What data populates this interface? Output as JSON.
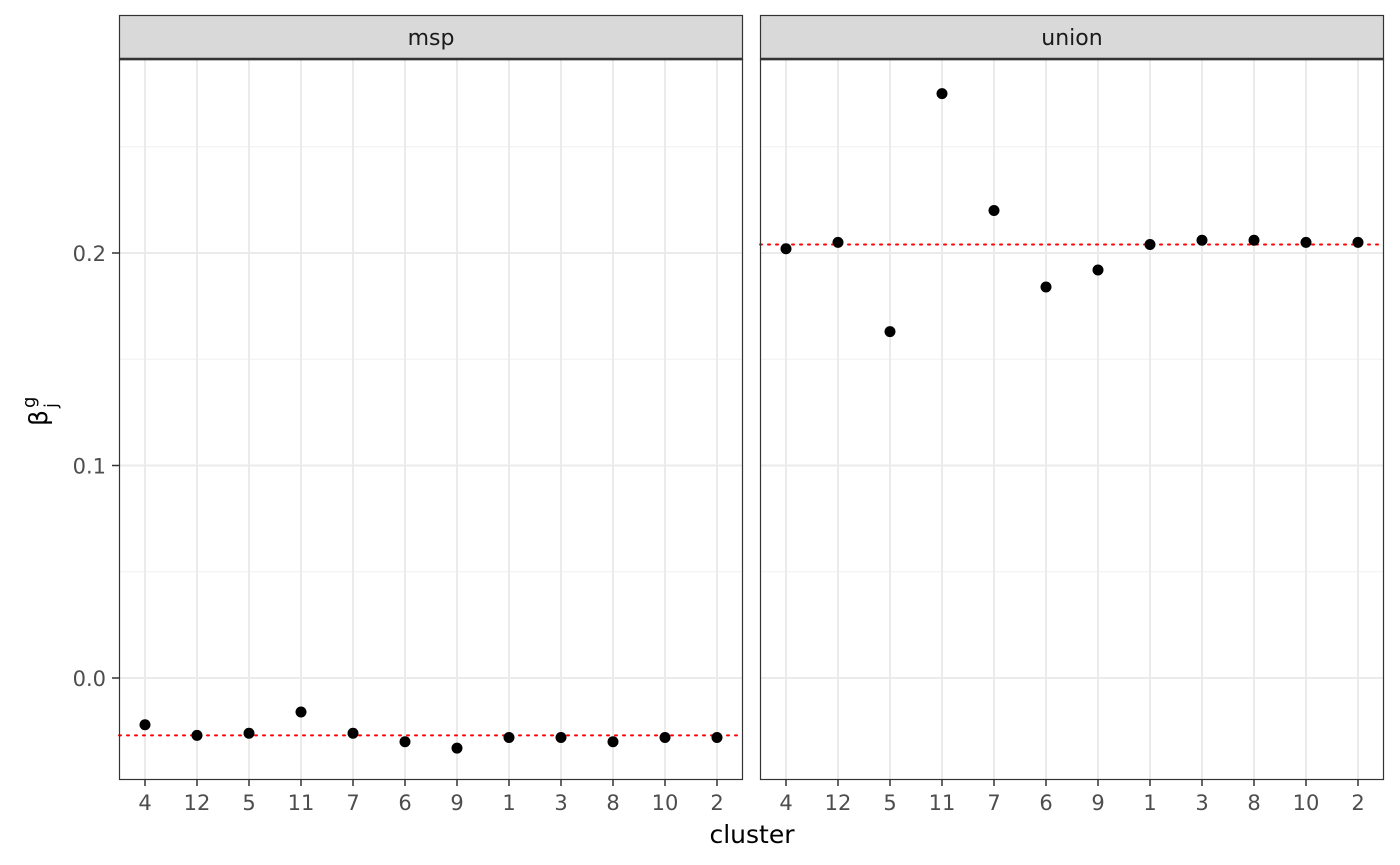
{
  "chart_data": {
    "type": "scatter",
    "xlabel": "cluster",
    "ylabel_base": "β",
    "ylabel_sup": "g",
    "ylabel_sub": "j",
    "categories": [
      "4",
      "12",
      "5",
      "11",
      "7",
      "6",
      "9",
      "1",
      "3",
      "8",
      "10",
      "2"
    ],
    "ylim": [
      -0.048,
      0.29
    ],
    "yticks": [
      0.0,
      0.1,
      0.2
    ],
    "ytick_labels": [
      "0.0",
      "0.1",
      "0.2"
    ],
    "grid": true,
    "point_color": "#000000",
    "refline_color": "#ff0000",
    "panels": [
      {
        "strip": "msp",
        "values": [
          -0.022,
          -0.027,
          -0.026,
          -0.016,
          -0.026,
          -0.03,
          -0.033,
          -0.028,
          -0.028,
          -0.03,
          -0.028,
          -0.028
        ],
        "refline": -0.027
      },
      {
        "strip": "union",
        "values": [
          0.202,
          0.205,
          0.163,
          0.275,
          0.22,
          0.184,
          0.192,
          0.204,
          0.206,
          0.206,
          0.205,
          0.205
        ],
        "refline": 0.204
      }
    ]
  }
}
